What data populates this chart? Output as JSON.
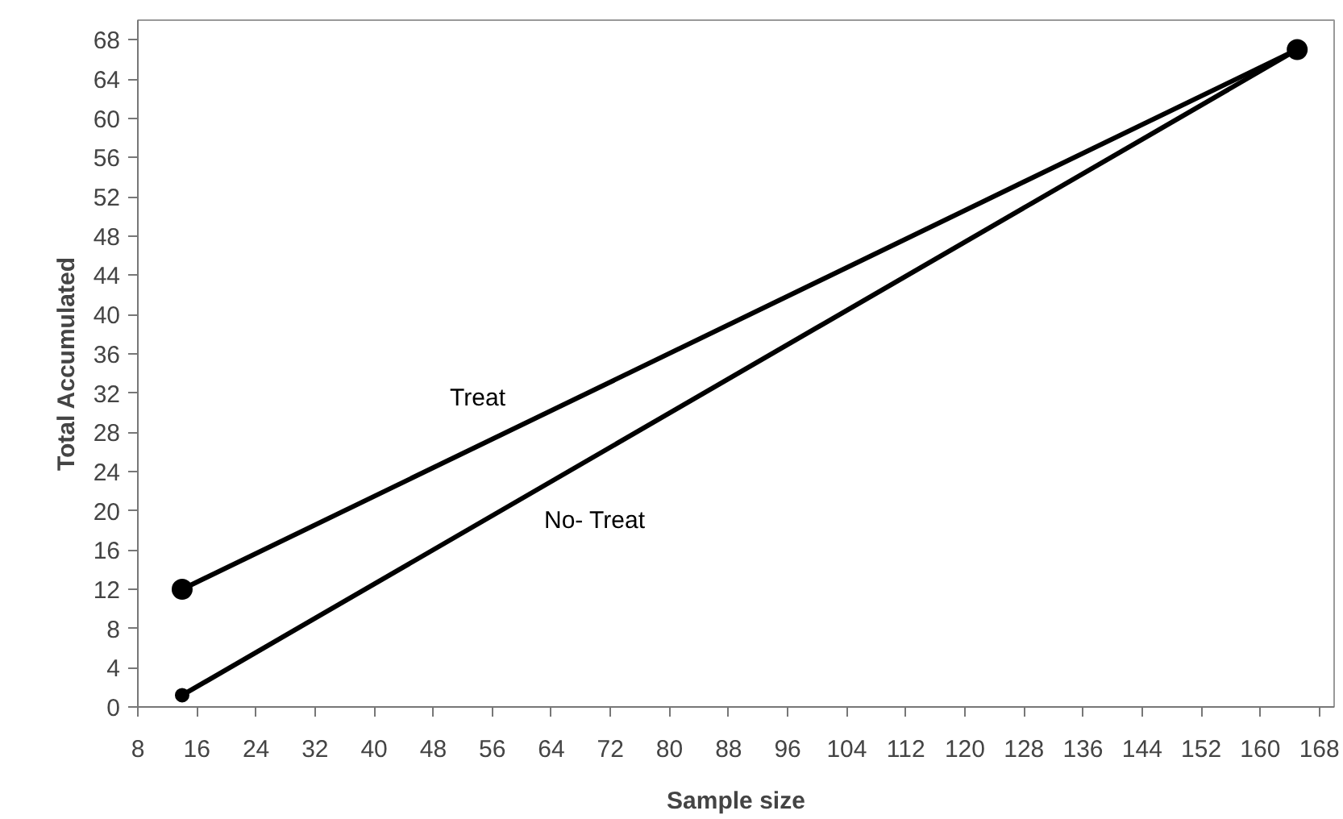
{
  "chart_data": {
    "type": "line",
    "xlabel": "Sample size",
    "ylabel": "Total Accumulated",
    "xlim": [
      8,
      170
    ],
    "ylim": [
      0,
      70
    ],
    "xticks": [
      8,
      16,
      24,
      32,
      40,
      48,
      56,
      64,
      72,
      80,
      88,
      96,
      104,
      112,
      120,
      128,
      136,
      144,
      152,
      160,
      168
    ],
    "yticks": [
      0,
      4,
      8,
      12,
      16,
      20,
      24,
      28,
      32,
      36,
      40,
      44,
      48,
      52,
      56,
      60,
      64,
      68
    ],
    "x": [
      14,
      165
    ],
    "series": [
      {
        "name": "Treat",
        "color": "#000000",
        "values": [
          12,
          67
        ]
      },
      {
        "name": "No- Treat",
        "color": "#000000",
        "values": [
          1.2,
          67
        ]
      }
    ],
    "marker": "circle",
    "line_style": "solid",
    "grid": false
  }
}
